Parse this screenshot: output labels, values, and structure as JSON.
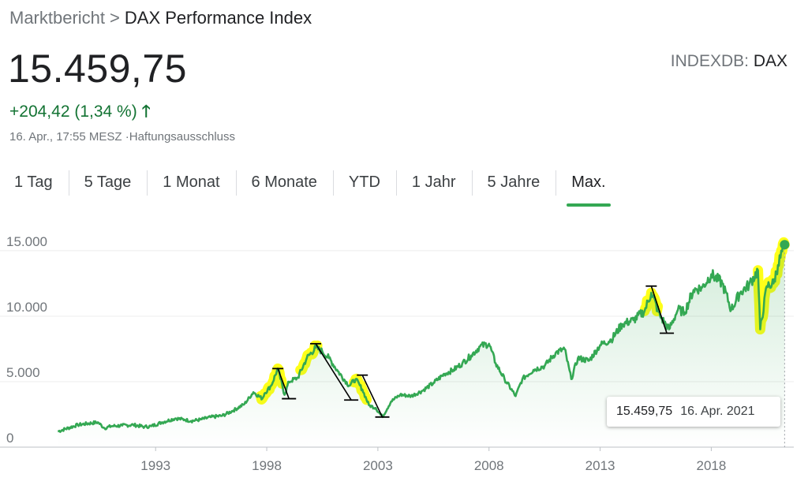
{
  "breadcrumb": {
    "parent": "Marktbericht",
    "separator": ">",
    "current": "DAX Performance Index"
  },
  "quote": {
    "price": "15.459,75",
    "exchange_prefix": "INDEXDB:",
    "exchange_code": "DAX",
    "change": "+204,42 (1,34 %)",
    "change_arrow": "🡑",
    "timestamp": "16. Apr., 17:55 MESZ ·",
    "disclaimer": "Haftungsausschluss"
  },
  "tabs": [
    {
      "label": "1 Tag",
      "active": false
    },
    {
      "label": "5 Tage",
      "active": false
    },
    {
      "label": "1 Monat",
      "active": false
    },
    {
      "label": "6 Monate",
      "active": false
    },
    {
      "label": "YTD",
      "active": false
    },
    {
      "label": "1 Jahr",
      "active": false
    },
    {
      "label": "5 Jahre",
      "active": false
    },
    {
      "label": "Max.",
      "active": true
    }
  ],
  "tooltip": {
    "value": "15.459,75",
    "date": "16. Apr. 2021"
  },
  "colors": {
    "line": "#34a853",
    "positive": "#137333",
    "highlight": "#ffff00",
    "annotation": "#000000"
  },
  "chart_data": {
    "type": "line",
    "title": "",
    "xlabel": "",
    "ylabel": "",
    "x_ticks": [
      "1993",
      "1998",
      "2003",
      "2008",
      "2013",
      "2018"
    ],
    "y_ticks": [
      0,
      5000,
      10000,
      15000
    ],
    "y_tick_labels": [
      "0",
      "5.000",
      "10.000",
      "15.000"
    ],
    "xlim": [
      1988.2,
      2021.5
    ],
    "ylim": [
      0,
      16200
    ],
    "grid": true,
    "area_fill": true,
    "series": [
      {
        "x": [
          1988.6,
          1989.5,
          1990.4,
          1990.7,
          1991.0,
          1991.5,
          1992.0,
          1992.5,
          1992.8,
          1993.3,
          1993.9,
          1994.3,
          1994.6,
          1995.0,
          1995.5,
          1996.0,
          1996.5,
          1997.0,
          1997.4,
          1997.8,
          1997.9,
          1998.2,
          1998.5,
          1998.8,
          1999.0,
          1999.4,
          1999.8,
          2000.2,
          2000.5,
          2000.8,
          2001.2,
          2001.7,
          2002.0,
          2002.3,
          2002.6,
          2002.9,
          2003.2,
          2003.6,
          2004.0,
          2004.5,
          2005.0,
          2005.5,
          2006.0,
          2006.4,
          2006.8,
          2007.2,
          2007.6,
          2008.0,
          2008.3,
          2008.7,
          2009.2,
          2009.5,
          2010.0,
          2010.5,
          2011.0,
          2011.4,
          2011.7,
          2012.0,
          2012.5,
          2013.0,
          2013.5,
          2014.0,
          2014.5,
          2015.0,
          2015.3,
          2015.7,
          2016.1,
          2016.5,
          2016.8,
          2017.2,
          2017.6,
          2018.0,
          2018.5,
          2018.9,
          2019.3,
          2019.7,
          2020.1,
          2020.2,
          2020.5,
          2020.8,
          2021.0,
          2021.3
        ],
        "y": [
          1200,
          1700,
          1900,
          1450,
          1600,
          1650,
          1700,
          1550,
          1600,
          1900,
          2200,
          2100,
          2000,
          2100,
          2300,
          2400,
          2800,
          3300,
          4200,
          3700,
          4100,
          4700,
          6000,
          4000,
          5000,
          5300,
          6800,
          7600,
          7300,
          6800,
          5800,
          4700,
          5200,
          4400,
          3200,
          3000,
          2300,
          3500,
          4000,
          3900,
          4300,
          4900,
          5600,
          5900,
          6400,
          7000,
          7700,
          7900,
          6400,
          5200,
          3900,
          5200,
          5900,
          6200,
          7200,
          7500,
          5200,
          6800,
          6600,
          7800,
          8200,
          9400,
          9700,
          10400,
          11800,
          10000,
          9000,
          10500,
          10300,
          12000,
          12200,
          13200,
          12500,
          10500,
          11800,
          12400,
          13500,
          9000,
          12300,
          12500,
          13900,
          15459.75
        ]
      }
    ],
    "highlight_ranges": [
      [
        1997.7,
        1998.7
      ],
      [
        1999.5,
        2000.3
      ],
      [
        2001.9,
        2002.5
      ],
      [
        2015.0,
        2015.6
      ],
      [
        2020.1,
        2021.4
      ]
    ]
  }
}
